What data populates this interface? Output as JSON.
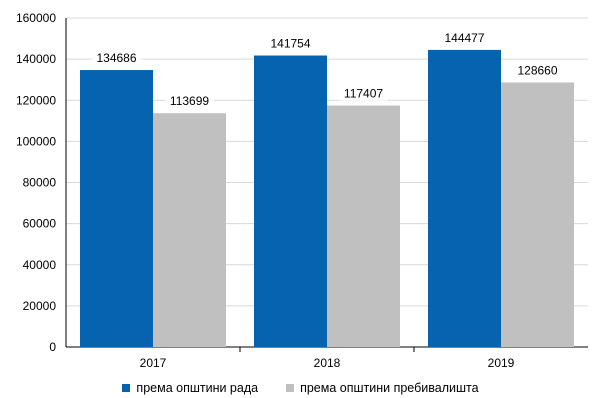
{
  "chart_data": {
    "type": "bar",
    "categories": [
      "2017",
      "2018",
      "2019"
    ],
    "series": [
      {
        "name": "према општини рада",
        "values": [
          134686,
          141754,
          144477
        ],
        "color": "#0563b0"
      },
      {
        "name": "према општини пребивалишта",
        "values": [
          113699,
          117407,
          128660
        ],
        "color": "#c0c0c0"
      }
    ],
    "ylim": [
      0,
      160000
    ],
    "yticks": [
      0,
      20000,
      40000,
      60000,
      80000,
      100000,
      120000,
      140000,
      160000
    ],
    "grid": true,
    "data_labels": true,
    "legend_position": "bottom"
  }
}
